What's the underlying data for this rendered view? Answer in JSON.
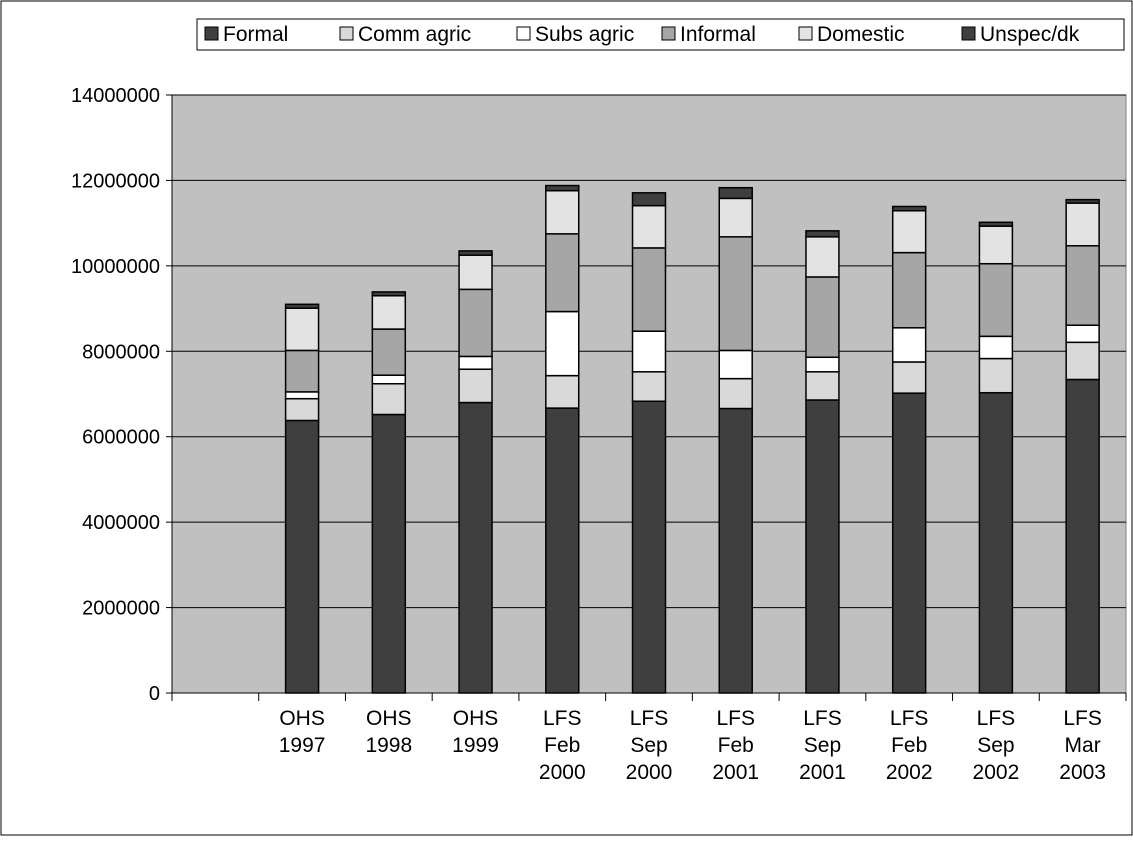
{
  "chart_data": {
    "type": "bar",
    "stacked": true,
    "title": "",
    "xlabel": "",
    "ylabel": "",
    "ylim": [
      0,
      14000000
    ],
    "yticks": [
      0,
      2000000,
      4000000,
      6000000,
      8000000,
      10000000,
      12000000,
      14000000
    ],
    "ytick_labels": [
      "0",
      "2000000",
      "4000000",
      "6000000",
      "8000000",
      "10000000",
      "12000000",
      "14000000"
    ],
    "grid": true,
    "legend_position": "top-right",
    "plot_background": "#c0c0c0",
    "categories": [
      [
        "",
        ""
      ],
      [
        "OHS",
        "1997"
      ],
      [
        "OHS",
        "1998"
      ],
      [
        "OHS",
        "1999"
      ],
      [
        "LFS",
        "Feb",
        "2000"
      ],
      [
        "LFS",
        "Sep",
        "2000"
      ],
      [
        "LFS",
        "Feb",
        "2001"
      ],
      [
        "LFS",
        "Sep",
        "2001"
      ],
      [
        "LFS",
        "Feb",
        "2002"
      ],
      [
        "LFS",
        "Sep",
        "2002"
      ],
      [
        "LFS",
        "Mar",
        "2003"
      ]
    ],
    "series": [
      {
        "name": "Formal",
        "color": "#3f3f3f",
        "values": [
          0,
          6380000,
          6520000,
          6800000,
          6670000,
          6830000,
          6660000,
          6860000,
          7020000,
          7030000,
          7340000
        ]
      },
      {
        "name": "Comm agric",
        "color": "#d9d9d9",
        "values": [
          0,
          510000,
          720000,
          780000,
          760000,
          690000,
          700000,
          660000,
          730000,
          800000,
          870000
        ]
      },
      {
        "name": "Subs agric",
        "color": "#ffffff",
        "values": [
          0,
          160000,
          200000,
          300000,
          1500000,
          950000,
          660000,
          340000,
          800000,
          520000,
          400000
        ]
      },
      {
        "name": "Informal",
        "color": "#a6a6a6",
        "values": [
          0,
          970000,
          1080000,
          1570000,
          1820000,
          1950000,
          2660000,
          1880000,
          1760000,
          1700000,
          1860000
        ]
      },
      {
        "name": "Domestic",
        "color": "#e3e3e3",
        "values": [
          0,
          990000,
          780000,
          800000,
          1010000,
          990000,
          900000,
          940000,
          980000,
          880000,
          1000000
        ]
      },
      {
        "name": "Unspec/dk",
        "color": "#3f3f3f",
        "values": [
          0,
          90000,
          90000,
          100000,
          120000,
          300000,
          250000,
          140000,
          100000,
          90000,
          80000
        ]
      }
    ]
  }
}
